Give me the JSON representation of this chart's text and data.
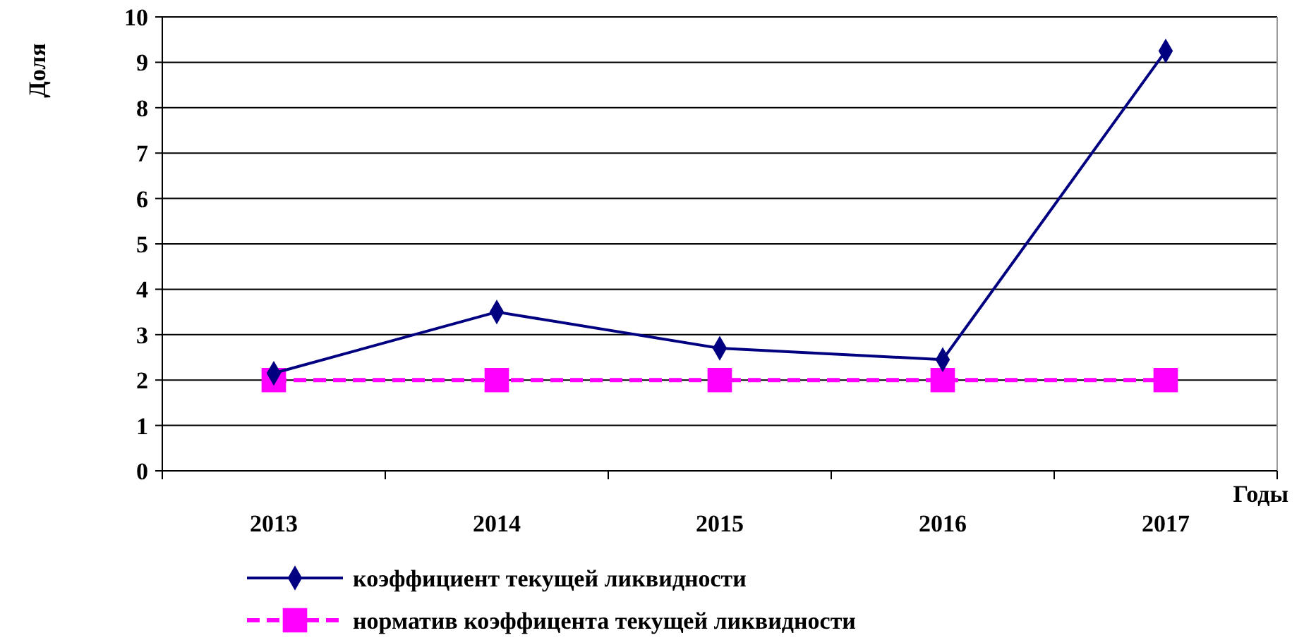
{
  "chart_data": {
    "type": "line",
    "ylabel": "Доля",
    "xlabel": "Годы",
    "categories": [
      "2013",
      "2014",
      "2015",
      "2016",
      "2017"
    ],
    "series": [
      {
        "name": "коэффициент текущей ликвидности",
        "color": "#000080",
        "values": [
          2.15,
          3.5,
          2.7,
          2.45,
          9.25
        ],
        "marker": "diamond",
        "line_style": "solid"
      },
      {
        "name": "норматив коэффицента текущей ликвидности",
        "color": "#ff00ff",
        "values": [
          2,
          2,
          2,
          2,
          2
        ],
        "marker": "square",
        "line_style": "dashed"
      }
    ],
    "ylim": [
      0,
      10
    ],
    "yticks": [
      0,
      1,
      2,
      3,
      4,
      5,
      6,
      7,
      8,
      9,
      10
    ],
    "grid": "y",
    "legend": "bottom"
  }
}
